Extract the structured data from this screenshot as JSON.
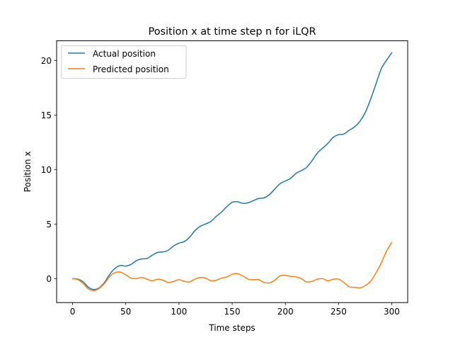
{
  "chart_data": {
    "type": "line",
    "title": "Position x at time step n for iLQR",
    "xlabel": "Time steps",
    "ylabel": "Position x",
    "xlim": [
      -15,
      315
    ],
    "ylim": [
      -2.2,
      21.8
    ],
    "xticks": [
      0,
      50,
      100,
      150,
      200,
      250,
      300
    ],
    "yticks": [
      0,
      5,
      10,
      15,
      20
    ],
    "grid": false,
    "legend_position": "top-left",
    "series": [
      {
        "name": "Actual position",
        "color": "#1f77b4",
        "points": [
          [
            0,
            0
          ],
          [
            5,
            -0.05
          ],
          [
            10,
            -0.3
          ],
          [
            15,
            -0.8
          ],
          [
            20,
            -1.0
          ],
          [
            25,
            -0.85
          ],
          [
            30,
            -0.35
          ],
          [
            35,
            0.4
          ],
          [
            40,
            0.95
          ],
          [
            45,
            1.2
          ],
          [
            50,
            1.15
          ],
          [
            55,
            1.3
          ],
          [
            60,
            1.65
          ],
          [
            65,
            1.8
          ],
          [
            70,
            1.85
          ],
          [
            75,
            2.15
          ],
          [
            80,
            2.4
          ],
          [
            85,
            2.45
          ],
          [
            90,
            2.6
          ],
          [
            95,
            3.0
          ],
          [
            100,
            3.25
          ],
          [
            105,
            3.4
          ],
          [
            110,
            3.8
          ],
          [
            115,
            4.4
          ],
          [
            120,
            4.8
          ],
          [
            125,
            5.0
          ],
          [
            130,
            5.25
          ],
          [
            135,
            5.7
          ],
          [
            140,
            6.1
          ],
          [
            145,
            6.6
          ],
          [
            150,
            7.0
          ],
          [
            155,
            7.05
          ],
          [
            160,
            6.9
          ],
          [
            165,
            6.95
          ],
          [
            170,
            7.15
          ],
          [
            175,
            7.35
          ],
          [
            180,
            7.4
          ],
          [
            185,
            7.7
          ],
          [
            190,
            8.2
          ],
          [
            195,
            8.7
          ],
          [
            200,
            8.95
          ],
          [
            205,
            9.2
          ],
          [
            210,
            9.65
          ],
          [
            215,
            9.9
          ],
          [
            220,
            10.2
          ],
          [
            225,
            10.8
          ],
          [
            230,
            11.5
          ],
          [
            235,
            11.95
          ],
          [
            240,
            12.4
          ],
          [
            245,
            12.95
          ],
          [
            250,
            13.2
          ],
          [
            255,
            13.25
          ],
          [
            260,
            13.6
          ],
          [
            265,
            13.9
          ],
          [
            270,
            14.4
          ],
          [
            275,
            15.2
          ],
          [
            280,
            16.4
          ],
          [
            285,
            17.8
          ],
          [
            290,
            19.2
          ],
          [
            295,
            20.0
          ],
          [
            300,
            20.7
          ]
        ]
      },
      {
        "name": "Predicted position",
        "color": "#ff7f0e",
        "points": [
          [
            0,
            0
          ],
          [
            5,
            -0.1
          ],
          [
            10,
            -0.45
          ],
          [
            15,
            -0.95
          ],
          [
            20,
            -1.1
          ],
          [
            25,
            -0.9
          ],
          [
            30,
            -0.45
          ],
          [
            35,
            0.2
          ],
          [
            40,
            0.55
          ],
          [
            45,
            0.6
          ],
          [
            50,
            0.35
          ],
          [
            55,
            0.05
          ],
          [
            60,
            0.0
          ],
          [
            65,
            0.1
          ],
          [
            70,
            -0.05
          ],
          [
            75,
            -0.2
          ],
          [
            80,
            -0.05
          ],
          [
            85,
            -0.15
          ],
          [
            90,
            -0.35
          ],
          [
            95,
            -0.25
          ],
          [
            100,
            -0.1
          ],
          [
            105,
            -0.25
          ],
          [
            110,
            -0.3
          ],
          [
            115,
            -0.05
          ],
          [
            120,
            0.1
          ],
          [
            125,
            0.05
          ],
          [
            130,
            -0.2
          ],
          [
            135,
            -0.15
          ],
          [
            140,
            0.05
          ],
          [
            145,
            0.15
          ],
          [
            150,
            0.4
          ],
          [
            155,
            0.45
          ],
          [
            160,
            0.25
          ],
          [
            165,
            -0.05
          ],
          [
            170,
            -0.1
          ],
          [
            175,
            -0.1
          ],
          [
            180,
            -0.35
          ],
          [
            185,
            -0.4
          ],
          [
            190,
            -0.15
          ],
          [
            195,
            0.25
          ],
          [
            200,
            0.3
          ],
          [
            205,
            0.2
          ],
          [
            210,
            0.15
          ],
          [
            215,
            0.0
          ],
          [
            220,
            -0.3
          ],
          [
            225,
            -0.25
          ],
          [
            230,
            -0.05
          ],
          [
            235,
            0.0
          ],
          [
            240,
            -0.2
          ],
          [
            245,
            -0.05
          ],
          [
            250,
            -0.05
          ],
          [
            255,
            -0.35
          ],
          [
            260,
            -0.75
          ],
          [
            265,
            -0.8
          ],
          [
            270,
            -0.85
          ],
          [
            275,
            -0.65
          ],
          [
            280,
            -0.25
          ],
          [
            285,
            0.5
          ],
          [
            290,
            1.4
          ],
          [
            295,
            2.5
          ],
          [
            300,
            3.3
          ]
        ]
      }
    ]
  }
}
